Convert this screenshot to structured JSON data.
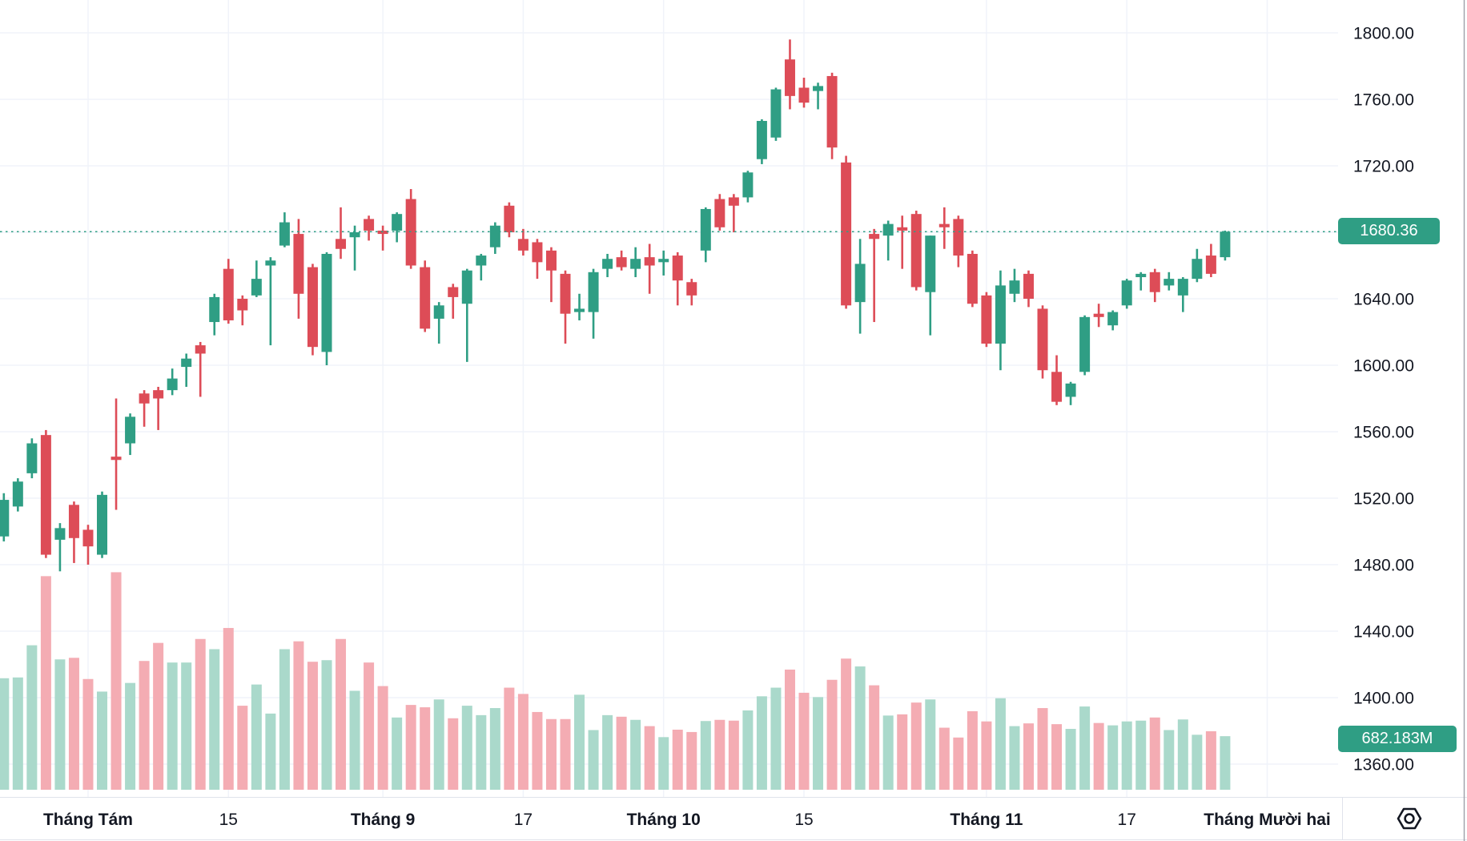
{
  "badges": {
    "last_price": "1680.36",
    "last_volume": "682.183M"
  },
  "colors": {
    "background": "#ffffff",
    "grid": "#F0F3FA",
    "up": "#2F9E84",
    "down": "#DD4C57",
    "volume_up": "#AAD9CB",
    "volume_down": "#F4ACB3",
    "accent": "#2F9E84",
    "axis_text": "#131722",
    "axis_border": "#E0E3EB",
    "scale_border": "#9DA0A8"
  },
  "price_axis": {
    "ticks": [
      {
        "price": 1800,
        "label": "1800.00"
      },
      {
        "price": 1760,
        "label": "1760.00"
      },
      {
        "price": 1720,
        "label": "1720.00"
      },
      {
        "price": 1640,
        "label": "1640.00"
      },
      {
        "price": 1600,
        "label": "1600.00"
      },
      {
        "price": 1560,
        "label": "1560.00"
      },
      {
        "price": 1520,
        "label": "1520.00"
      },
      {
        "price": 1480,
        "label": "1480.00"
      },
      {
        "price": 1440,
        "label": "1440.00"
      },
      {
        "price": 1400,
        "label": "1400.00"
      },
      {
        "price": 1360,
        "label": "1360.00"
      }
    ]
  },
  "time_axis": {
    "ticks": [
      {
        "index": 6,
        "label": "Tháng Tám",
        "bold": true
      },
      {
        "index": 16,
        "label": "15",
        "bold": false
      },
      {
        "index": 27,
        "label": "Tháng 9",
        "bold": true
      },
      {
        "index": 37,
        "label": "17",
        "bold": false
      },
      {
        "index": 47,
        "label": "Tháng 10",
        "bold": true
      },
      {
        "index": 57,
        "label": "15",
        "bold": false
      },
      {
        "index": 70,
        "label": "Tháng 11",
        "bold": true
      },
      {
        "index": 80,
        "label": "17",
        "bold": false
      },
      {
        "index": 90,
        "label": "Tháng Mười hai",
        "bold": true
      }
    ]
  },
  "chart_data": {
    "type": "candlestick",
    "title": "",
    "xlabel": "",
    "ylabel": "",
    "legend": false,
    "grid": true,
    "y_axis_range_shown": [
      1360,
      1800
    ],
    "y_gridline_step": 40,
    "last_close": 1680.36,
    "last_volume_m": 682.183,
    "volume_unit": "M",
    "volume_series_type": "bar",
    "candles_format": [
      "open",
      "high",
      "low",
      "close",
      "volume_m"
    ],
    "candles": [
      [
        1497,
        1523,
        1494,
        1519,
        1420
      ],
      [
        1515,
        1532,
        1512,
        1530,
        1430
      ],
      [
        1535,
        1556,
        1532,
        1553,
        1840
      ],
      [
        1558,
        1561,
        1484,
        1486,
        2720
      ],
      [
        1495,
        1505,
        1476,
        1502,
        1660
      ],
      [
        1516,
        1518,
        1481,
        1496,
        1680
      ],
      [
        1501,
        1504,
        1480,
        1491,
        1410
      ],
      [
        1486,
        1524,
        1484,
        1522,
        1250
      ],
      [
        1545,
        1580,
        1513,
        1543,
        2770
      ],
      [
        1553,
        1571,
        1546,
        1569,
        1360
      ],
      [
        1583,
        1585,
        1563,
        1577,
        1640
      ],
      [
        1585,
        1587,
        1561,
        1580,
        1870
      ],
      [
        1585,
        1598,
        1582,
        1592,
        1620
      ],
      [
        1599,
        1607,
        1587,
        1604,
        1620
      ],
      [
        1612,
        1614,
        1581,
        1607,
        1920
      ],
      [
        1626,
        1643,
        1618,
        1641,
        1790
      ],
      [
        1658,
        1664,
        1625,
        1627,
        2060
      ],
      [
        1640,
        1642,
        1624,
        1633,
        1070
      ],
      [
        1642,
        1663,
        1641,
        1652,
        1340
      ],
      [
        1660,
        1665,
        1612,
        1663,
        970
      ],
      [
        1672,
        1692,
        1671,
        1686,
        1790
      ],
      [
        1679,
        1688,
        1628,
        1643,
        1890
      ],
      [
        1659,
        1661,
        1606,
        1611,
        1630
      ],
      [
        1608,
        1668,
        1600,
        1667,
        1650
      ],
      [
        1676,
        1695,
        1664,
        1670,
        1920
      ],
      [
        1677,
        1684,
        1657,
        1680,
        1260
      ],
      [
        1688,
        1690,
        1675,
        1681,
        1620
      ],
      [
        1681,
        1684,
        1669,
        1679,
        1320
      ],
      [
        1681,
        1692,
        1674,
        1691,
        920
      ],
      [
        1700,
        1706,
        1658,
        1660,
        1080
      ],
      [
        1659,
        1663,
        1620,
        1622,
        1050
      ],
      [
        1628,
        1638,
        1613,
        1636,
        1150
      ],
      [
        1647,
        1649,
        1628,
        1641,
        910
      ],
      [
        1637,
        1658,
        1602,
        1657,
        1070
      ],
      [
        1660,
        1667,
        1651,
        1666,
        950
      ],
      [
        1671,
        1686,
        1667,
        1684,
        1040
      ],
      [
        1696,
        1698,
        1677,
        1680,
        1300
      ],
      [
        1676,
        1682,
        1666,
        1669,
        1220
      ],
      [
        1674,
        1676,
        1652,
        1662,
        990
      ],
      [
        1669,
        1671,
        1638,
        1657,
        900
      ],
      [
        1655,
        1657,
        1613,
        1631,
        900
      ],
      [
        1632,
        1643,
        1627,
        1634,
        1210
      ],
      [
        1632,
        1658,
        1616,
        1656,
        760
      ],
      [
        1658,
        1667,
        1653,
        1664,
        950
      ],
      [
        1665,
        1669,
        1657,
        1659,
        930
      ],
      [
        1658,
        1671,
        1653,
        1664,
        890
      ],
      [
        1665,
        1673,
        1643,
        1660,
        810
      ],
      [
        1662,
        1669,
        1654,
        1664,
        670
      ],
      [
        1666,
        1668,
        1636,
        1651,
        765
      ],
      [
        1650,
        1652,
        1636,
        1642,
        735
      ],
      [
        1669,
        1695,
        1662,
        1694,
        875
      ],
      [
        1700,
        1703,
        1681,
        1683,
        890
      ],
      [
        1701,
        1703,
        1680,
        1696,
        880
      ],
      [
        1701,
        1717,
        1698,
        1716,
        1010
      ],
      [
        1724,
        1748,
        1721,
        1747,
        1190
      ],
      [
        1737,
        1767,
        1735,
        1766,
        1300
      ],
      [
        1784,
        1796,
        1754,
        1762,
        1530
      ],
      [
        1767,
        1773,
        1755,
        1758,
        1235
      ],
      [
        1765,
        1770,
        1754,
        1768,
        1180
      ],
      [
        1774,
        1776,
        1724,
        1731,
        1400
      ],
      [
        1722,
        1726,
        1634,
        1636,
        1670
      ],
      [
        1638,
        1676,
        1619,
        1661,
        1570
      ],
      [
        1679,
        1682,
        1626,
        1676,
        1330
      ],
      [
        1678,
        1687,
        1663,
        1685,
        945
      ],
      [
        1683,
        1690,
        1658,
        1681,
        960
      ],
      [
        1691,
        1693,
        1645,
        1647,
        1110
      ],
      [
        1644,
        1678,
        1618,
        1678,
        1150
      ],
      [
        1685,
        1695,
        1670,
        1683,
        790
      ],
      [
        1688,
        1690,
        1659,
        1666,
        665
      ],
      [
        1667,
        1669,
        1635,
        1637,
        1000
      ],
      [
        1642,
        1644,
        1611,
        1613,
        870
      ],
      [
        1613,
        1657,
        1597,
        1648,
        1165
      ],
      [
        1643,
        1658,
        1638,
        1651,
        810
      ],
      [
        1655,
        1657,
        1635,
        1640,
        845
      ],
      [
        1634,
        1636,
        1592,
        1597,
        1040
      ],
      [
        1596,
        1606,
        1576,
        1578,
        835
      ],
      [
        1581,
        1590,
        1576,
        1589,
        775
      ],
      [
        1596,
        1630,
        1594,
        1629,
        1060
      ],
      [
        1631,
        1637,
        1623,
        1629,
        850
      ],
      [
        1624,
        1633,
        1621,
        1632,
        820
      ],
      [
        1636,
        1652,
        1634,
        1651,
        870
      ],
      [
        1653,
        1656,
        1645,
        1655,
        880
      ],
      [
        1656,
        1658,
        1638,
        1644,
        920
      ],
      [
        1648,
        1656,
        1645,
        1652,
        760
      ],
      [
        1642,
        1653,
        1632,
        1652,
        895
      ],
      [
        1652,
        1670,
        1650,
        1664,
        700
      ],
      [
        1666,
        1673,
        1653,
        1655,
        745
      ],
      [
        1665,
        1681,
        1663,
        1680.36,
        682.183
      ]
    ]
  }
}
